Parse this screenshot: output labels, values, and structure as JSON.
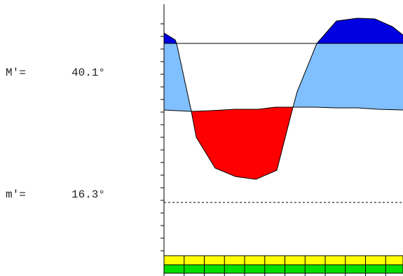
{
  "readouts": {
    "upper": {
      "label": "M′=",
      "value": "40.1°"
    },
    "lower": {
      "label": "m′=",
      "value": "16.3°"
    }
  },
  "colors": {
    "deep_blue": "#0000e0",
    "light_blue": "#80c0ff",
    "red": "#ff0000",
    "yellow": "#ffff00",
    "green": "#00e000",
    "line": "#000000"
  }
}
